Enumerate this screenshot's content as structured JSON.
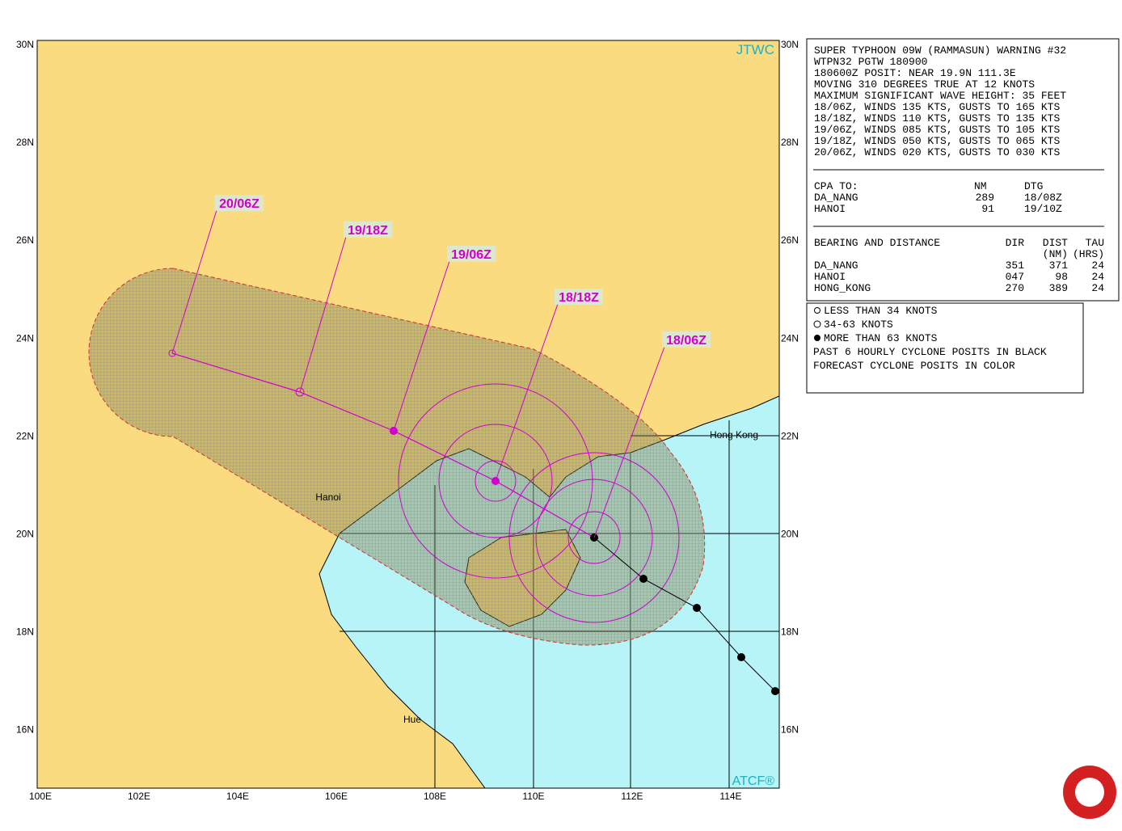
{
  "map": {
    "lat_labels": [
      "30N",
      "28N",
      "26N",
      "24N",
      "22N",
      "20N",
      "18N",
      "16N"
    ],
    "lon_labels": [
      "100E",
      "102E",
      "104E",
      "106E",
      "108E",
      "110E",
      "112E",
      "114E"
    ],
    "agency": "JTWC",
    "credit": "ATCF®",
    "forecast_labels": [
      "20/06Z",
      "19/18Z",
      "19/06Z",
      "18/18Z",
      "18/06Z"
    ],
    "places": [
      "Hanoi",
      "Hong Kong",
      "Hue"
    ]
  },
  "warning": {
    "lines": [
      "SUPER TYPHOON 09W (RAMMASUN) WARNING #32",
      "WTPN32 PGTW 180900",
      "180600Z POSIT: NEAR 19.9N 111.3E",
      "MOVING 310 DEGREES TRUE AT 12 KNOTS",
      "MAXIMUM SIGNIFICANT WAVE HEIGHT: 35 FEET",
      "18/06Z, WINDS 135 KTS, GUSTS TO 165 KTS",
      "18/18Z, WINDS 110 KTS, GUSTS TO 135 KTS",
      "19/06Z, WINDS 085 KTS, GUSTS TO 105 KTS",
      "19/18Z, WINDS 050 KTS, GUSTS TO 065 KTS",
      "20/06Z, WINDS 020 KTS, GUSTS TO 030 KTS"
    ],
    "cpa": {
      "header": [
        "CPA TO:",
        "NM",
        "DTG"
      ],
      "rows": [
        [
          "DA_NANG",
          "289",
          "18/08Z"
        ],
        [
          "HANOI",
          "91",
          "19/10Z"
        ]
      ]
    },
    "bearing": {
      "header": [
        "BEARING AND DISTANCE",
        "DIR",
        "DIST",
        "TAU"
      ],
      "subheader": [
        "(NM)",
        "(HRS)"
      ],
      "rows": [
        [
          "DA_NANG",
          "351",
          "371",
          "24"
        ],
        [
          "HANOI",
          "047",
          "98",
          "24"
        ],
        [
          "HONG_KONG",
          "270",
          "389",
          "24"
        ]
      ]
    }
  },
  "legend": [
    "LESS THAN 34 KNOTS",
    "34-63 KNOTS",
    "MORE THAN 63 KNOTS",
    "PAST 6 HOURLY CYCLONE POSITS IN BLACK",
    "FORECAST CYCLONE POSITS IN COLOR"
  ]
}
